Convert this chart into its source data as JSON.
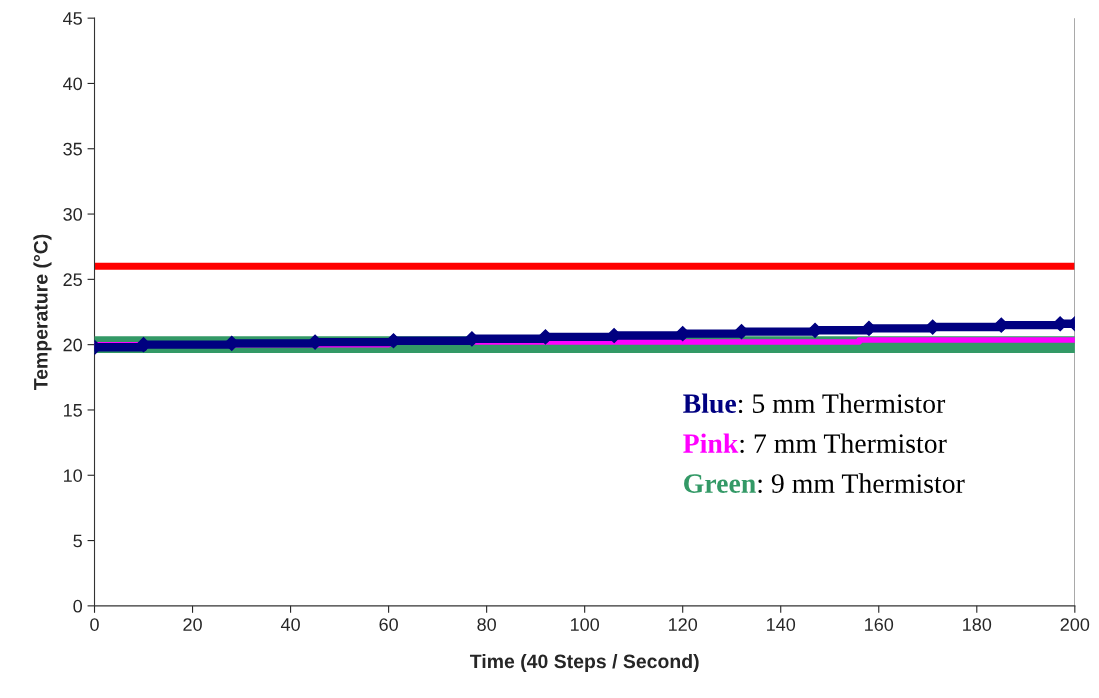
{
  "chart_data": {
    "type": "step",
    "xlabel": "Time (40 Steps / Second)",
    "ylabel": "Temperature (°C)",
    "xlim": [
      0,
      200
    ],
    "xticks": [
      0,
      20,
      40,
      60,
      80,
      100,
      120,
      140,
      160,
      180,
      200
    ],
    "ylim": [
      0,
      45
    ],
    "yticks": [
      0,
      5,
      10,
      15,
      20,
      25,
      30,
      35,
      40,
      45
    ],
    "grid": false,
    "legend": "bottom right",
    "ref_lines": [
      {
        "axis": "y",
        "value": 26,
        "color": "#ff0000"
      }
    ],
    "series": [
      {
        "name": "Blue: 5 mm Thermistor",
        "color": "#000080",
        "marker": "diamond",
        "x": [
          0,
          10,
          28,
          45,
          61,
          77,
          92,
          106,
          120,
          132,
          147,
          158,
          171,
          185,
          197,
          200
        ],
        "values": [
          19.8,
          20.0,
          20.1,
          20.2,
          20.3,
          20.45,
          20.6,
          20.7,
          20.85,
          21.0,
          21.1,
          21.25,
          21.35,
          21.5,
          21.6,
          21.6
        ]
      },
      {
        "name": "Pink: 7 mm Thermistor",
        "color": "#ff00ff",
        "x": [
          0,
          60,
          156,
          200
        ],
        "values": [
          20.0,
          20.2,
          20.35,
          20.35
        ]
      },
      {
        "name": "Green: 9 mm Thermistor",
        "color": "#339966",
        "x": [
          0,
          200
        ],
        "values": [
          20.0,
          20.0
        ]
      }
    ]
  }
}
